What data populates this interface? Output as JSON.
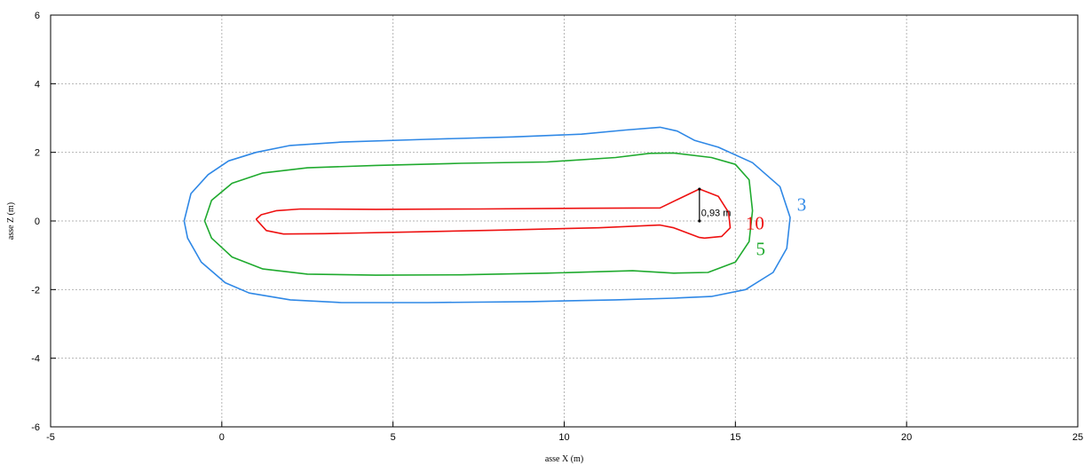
{
  "chart_data": {
    "type": "line",
    "title": "",
    "xlabel": "asse X (m)",
    "ylabel": "asse Z (m)",
    "xlim": [
      -5,
      25
    ],
    "ylim": [
      -6,
      6
    ],
    "x_ticks": [
      -5,
      0,
      5,
      10,
      15,
      20,
      25
    ],
    "y_ticks": [
      -6,
      -4,
      -2,
      0,
      2,
      4,
      6
    ],
    "grid": true,
    "series": [
      {
        "name": "3",
        "color": "#2f88e6",
        "label_at": [
          16.8,
          0.3
        ],
        "x": [
          -1.1,
          -0.9,
          -0.4,
          0.2,
          1.0,
          2.0,
          3.5,
          6.0,
          8.5,
          10.5,
          11.8,
          12.8,
          13.3,
          13.8,
          14.5,
          15.5,
          16.3,
          16.6,
          16.5,
          16.1,
          15.3,
          14.3,
          13.2,
          11.5,
          9.0,
          6.0,
          3.5,
          2.0,
          0.8,
          0.1,
          -0.6,
          -1.0,
          -1.1
        ],
        "y": [
          0.0,
          0.8,
          1.35,
          1.75,
          2.0,
          2.2,
          2.3,
          2.38,
          2.45,
          2.53,
          2.65,
          2.73,
          2.62,
          2.35,
          2.15,
          1.7,
          1.0,
          0.1,
          -0.8,
          -1.5,
          -2.0,
          -2.2,
          -2.25,
          -2.3,
          -2.35,
          -2.38,
          -2.38,
          -2.3,
          -2.1,
          -1.8,
          -1.2,
          -0.5,
          0.0
        ]
      },
      {
        "name": "5",
        "color": "#1faa2e",
        "label_at": [
          15.6,
          -1.0
        ],
        "x": [
          -0.5,
          -0.3,
          0.3,
          1.2,
          2.5,
          4.5,
          7.0,
          9.5,
          11.5,
          12.5,
          13.2,
          14.3,
          15.0,
          15.4,
          15.5,
          15.4,
          15.0,
          14.2,
          13.2,
          12.0,
          9.5,
          7.0,
          4.5,
          2.5,
          1.2,
          0.3,
          -0.3,
          -0.5
        ],
        "y": [
          0.0,
          0.6,
          1.1,
          1.4,
          1.55,
          1.62,
          1.68,
          1.72,
          1.85,
          1.97,
          1.98,
          1.85,
          1.65,
          1.2,
          0.3,
          -0.6,
          -1.2,
          -1.5,
          -1.52,
          -1.45,
          -1.52,
          -1.57,
          -1.58,
          -1.55,
          -1.4,
          -1.05,
          -0.5,
          0.0
        ]
      },
      {
        "name": "10",
        "color": "#ee1111",
        "label_at": [
          15.3,
          -0.25
        ],
        "x": [
          1.0,
          1.15,
          1.6,
          2.3,
          4.5,
          7.5,
          10.5,
          12.8,
          13.3,
          13.95,
          14.5,
          14.8,
          14.85,
          14.6,
          14.1,
          13.95,
          13.2,
          12.8,
          11.0,
          8.0,
          5.5,
          3.0,
          1.8,
          1.3,
          1.0
        ],
        "y": [
          0.05,
          0.18,
          0.3,
          0.35,
          0.34,
          0.35,
          0.37,
          0.38,
          0.62,
          0.93,
          0.72,
          0.25,
          -0.2,
          -0.45,
          -0.5,
          -0.48,
          -0.2,
          -0.12,
          -0.2,
          -0.27,
          -0.32,
          -0.37,
          -0.38,
          -0.28,
          0.05
        ]
      }
    ],
    "annotations": [
      {
        "text": "0,93 m",
        "x": 14.0,
        "y": 0.24,
        "segment": {
          "x": 13.95,
          "y0": 0.0,
          "y1": 0.93
        }
      }
    ]
  }
}
